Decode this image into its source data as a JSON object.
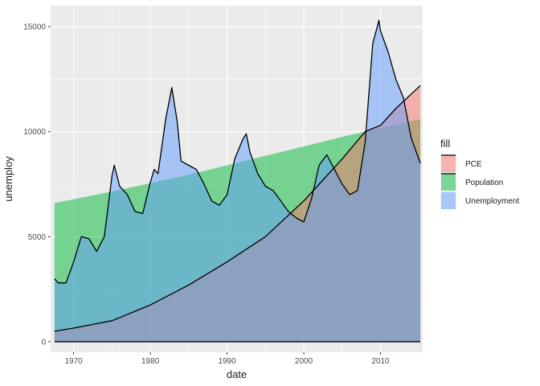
{
  "chart_data": {
    "type": "area",
    "xlabel": "date",
    "ylabel": "unemploy",
    "xlim": [
      1967,
      2015.5
    ],
    "ylim": [
      -500,
      16000
    ],
    "x_ticks": [
      1970,
      1980,
      1990,
      2000,
      2010
    ],
    "x_tick_labels": [
      "1970",
      "1980",
      "1990",
      "2000",
      "2010"
    ],
    "y_ticks": [
      0,
      5000,
      10000,
      15000
    ],
    "y_tick_labels": [
      "0",
      "5000",
      "10000",
      "15000"
    ],
    "grid": true,
    "legend": {
      "title": "fill",
      "position": "right",
      "entries": [
        "PCE",
        "Population",
        "Unemployment"
      ]
    },
    "colors": {
      "PCE": "#F8766D",
      "Population": "#00BA38",
      "Unemployment": "#619CFF",
      "panel": "#EBEBEB",
      "grid_major": "#FFFFFF",
      "outline": "#000000"
    },
    "series": [
      {
        "name": "PCE",
        "x": [
          1967.5,
          1970,
          1975,
          1980,
          1985,
          1990,
          1995,
          2000,
          2005,
          2008,
          2010,
          2012,
          2015.2
        ],
        "values": [
          500,
          650,
          1000,
          1750,
          2700,
          3800,
          5000,
          6700,
          8700,
          10000,
          10300,
          11100,
          12200
        ]
      },
      {
        "name": "Population",
        "x": [
          1967.5,
          1975,
          1985,
          1995,
          2005,
          2015.2
        ],
        "values": [
          6600,
          7150,
          7950,
          8850,
          9750,
          10600
        ]
      },
      {
        "name": "Unemployment",
        "x": [
          1967.5,
          1968,
          1969,
          1970,
          1971,
          1972,
          1973,
          1974,
          1975,
          1975.3,
          1976,
          1977,
          1978,
          1979,
          1980,
          1980.5,
          1981,
          1982,
          1982.8,
          1983.5,
          1984,
          1985,
          1986,
          1987,
          1988,
          1989,
          1990,
          1991,
          1992,
          1992.5,
          1993,
          1994,
          1995,
          1996,
          1997,
          1998,
          1999,
          2000,
          2001,
          2002,
          2003,
          2004,
          2005,
          2006,
          2007,
          2008,
          2009,
          2009.8,
          2010,
          2011,
          2012,
          2013,
          2014,
          2015.2
        ],
        "values": [
          3000,
          2800,
          2800,
          3800,
          5000,
          4900,
          4300,
          5000,
          7900,
          8400,
          7400,
          7000,
          6200,
          6100,
          7600,
          8200,
          8000,
          10600,
          12100,
          10500,
          8600,
          8400,
          8200,
          7500,
          6700,
          6500,
          7000,
          8700,
          9600,
          9900,
          9000,
          8000,
          7400,
          7200,
          6700,
          6200,
          5900,
          5700,
          6800,
          8400,
          8900,
          8200,
          7500,
          7000,
          7200,
          9500,
          14200,
          15300,
          14800,
          13800,
          12500,
          11600,
          9700,
          8500
        ]
      }
    ]
  }
}
